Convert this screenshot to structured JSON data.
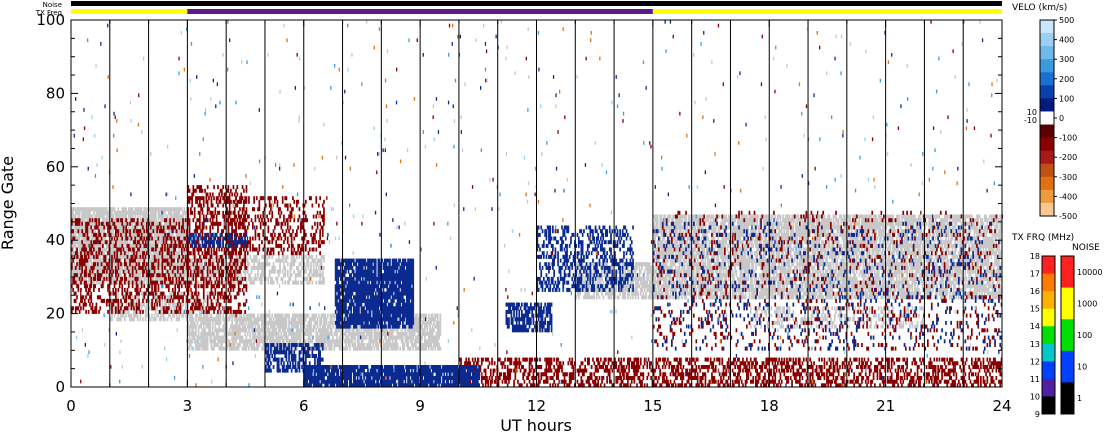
{
  "chart_data": {
    "type": "heatmap",
    "xlabel": "UT hours",
    "ylabel": "Range Gate",
    "xlim": [
      0,
      24
    ],
    "ylim": [
      0,
      100
    ],
    "x_ticks": [
      "0",
      "3",
      "6",
      "9",
      "12",
      "15",
      "18",
      "21",
      "24"
    ],
    "y_ticks": [
      "0",
      "20",
      "40",
      "60",
      "80",
      "100"
    ],
    "top_bars": {
      "noise_label": "Noise",
      "txfreq_label": "TX Freq",
      "txfreq_segments": [
        {
          "start": 0,
          "end": 3,
          "color": "#ffff00"
        },
        {
          "start": 3,
          "end": 15,
          "color": "#5a1a8a"
        },
        {
          "start": 15,
          "end": 24,
          "color": "#ffff00"
        }
      ]
    },
    "velocity_colorbar": {
      "title": "VELO (km/s)",
      "labels": [
        "500",
        "400",
        "300",
        "200",
        "100",
        "0",
        "-100",
        "-200",
        "-300",
        "-400",
        "-500"
      ],
      "inner_labels": [
        "10",
        "-10"
      ],
      "colors": [
        "#c8e6ff",
        "#9ccff0",
        "#6fb8ea",
        "#3b9be0",
        "#1a6fd0",
        "#0a3fb0",
        "#001a80",
        "#ffffff",
        "#5a0000",
        "#8a0000",
        "#a81a1a",
        "#c05018",
        "#e07010",
        "#f09a40",
        "#f8c890"
      ]
    },
    "txfreq_colorbar": {
      "title": "TX FRQ (MHz)",
      "labels": [
        "18",
        "17",
        "16",
        "15",
        "14",
        "13",
        "12",
        "11",
        "10",
        "9"
      ],
      "colors": [
        "#ff2020",
        "#ff7a00",
        "#ffb000",
        "#ffff00",
        "#00e000",
        "#00c8c8",
        "#0040ff",
        "#5020a0",
        "#000000"
      ]
    },
    "noise_colorbar": {
      "title": "NOISE",
      "labels": [
        "10000",
        "1000",
        "100",
        "10",
        "1"
      ],
      "colors": [
        "#ff2020",
        "#ffff00",
        "#00e000",
        "#0040ff",
        "#000000"
      ]
    },
    "echo_regions": [
      {
        "class": "groundscatter",
        "color": "#c8c8c8",
        "x0": 0.0,
        "x1": 3.0,
        "y0": 28,
        "y1": 49,
        "density": 0.85
      },
      {
        "class": "groundscatter",
        "color": "#c8c8c8",
        "x0": 1.0,
        "x1": 3.5,
        "y0": 18,
        "y1": 26,
        "density": 0.5
      },
      {
        "class": "groundscatter",
        "color": "#c8c8c8",
        "x0": 3.0,
        "x1": 6.5,
        "y0": 28,
        "y1": 36,
        "density": 0.55
      },
      {
        "class": "groundscatter",
        "color": "#c8c8c8",
        "x0": 3.0,
        "x1": 9.5,
        "y0": 10,
        "y1": 20,
        "density": 0.75
      },
      {
        "class": "groundscatter",
        "color": "#c8c8c8",
        "x0": 13.0,
        "x1": 15.0,
        "y0": 24,
        "y1": 34,
        "density": 0.65
      },
      {
        "class": "groundscatter",
        "color": "#c8c8c8",
        "x0": 15.0,
        "x1": 24.0,
        "y0": 24,
        "y1": 47,
        "density": 0.75
      },
      {
        "class": "groundscatter",
        "color": "#c8c8c8",
        "x0": 17.5,
        "x1": 22.0,
        "y0": 16,
        "y1": 22,
        "density": 0.35
      },
      {
        "class": "negative",
        "color": "#8a0000",
        "x0": 0.0,
        "x1": 3.0,
        "y0": 20,
        "y1": 46,
        "density": 0.35
      },
      {
        "class": "negative",
        "color": "#8a0000",
        "x0": 3.0,
        "x1": 4.5,
        "y0": 20,
        "y1": 55,
        "density": 0.4
      },
      {
        "class": "negative",
        "color": "#8a0000",
        "x0": 4.0,
        "x1": 6.5,
        "y0": 36,
        "y1": 52,
        "density": 0.3
      },
      {
        "class": "negative",
        "color": "#8a0000",
        "x0": 10.0,
        "x1": 24.0,
        "y0": 0,
        "y1": 8,
        "density": 0.45
      },
      {
        "class": "negative",
        "color": "#8a0000",
        "x0": 15.0,
        "x1": 24.0,
        "y0": 10,
        "y1": 48,
        "density": 0.08
      },
      {
        "class": "positive",
        "color": "#0a2a90",
        "x0": 6.8,
        "x1": 8.8,
        "y0": 16,
        "y1": 35,
        "density": 0.85
      },
      {
        "class": "positive",
        "color": "#0a2a90",
        "x0": 6.0,
        "x1": 10.5,
        "y0": 0,
        "y1": 6,
        "density": 0.9
      },
      {
        "class": "positive",
        "color": "#0a2a90",
        "x0": 5.0,
        "x1": 6.5,
        "y0": 4,
        "y1": 12,
        "density": 0.6
      },
      {
        "class": "positive",
        "color": "#0a2a90",
        "x0": 3.0,
        "x1": 4.5,
        "y0": 38,
        "y1": 42,
        "density": 0.5
      },
      {
        "class": "positive",
        "color": "#0a2a90",
        "x0": 11.2,
        "x1": 12.4,
        "y0": 15,
        "y1": 23,
        "density": 0.7
      },
      {
        "class": "positive",
        "color": "#0a2a90",
        "x0": 12.0,
        "x1": 14.5,
        "y0": 26,
        "y1": 44,
        "density": 0.4
      },
      {
        "class": "positive",
        "color": "#0a2a90",
        "x0": 15.0,
        "x1": 24.0,
        "y0": 10,
        "y1": 45,
        "density": 0.07
      }
    ]
  }
}
